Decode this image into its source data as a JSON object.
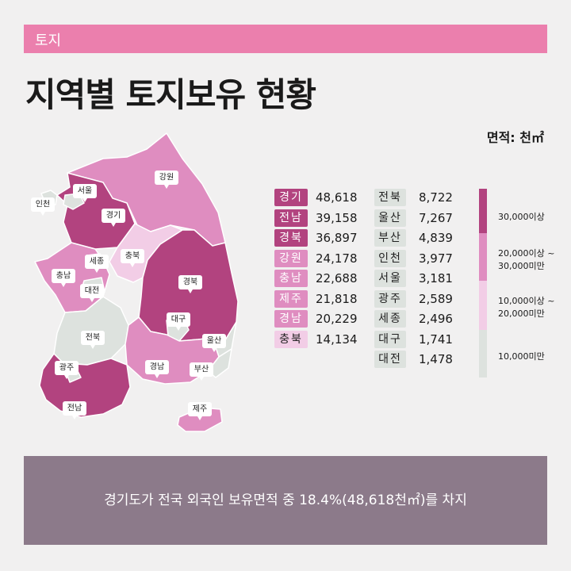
{
  "header": {
    "category": "토지",
    "title": "지역별 토지보유 현황",
    "unit": "면적: 천㎡"
  },
  "colors": {
    "category_bar": "#eb7fad",
    "level_1": "#b2437f",
    "level_2": "#df8dc0",
    "level_3": "#f2cde6",
    "level_4": "#dde2de",
    "summary_bg": "#8c7a8a"
  },
  "chart_data": {
    "type": "table",
    "unit": "천㎡",
    "regions": [
      {
        "name": "경기",
        "value": 48618,
        "display": "48,618",
        "level": 1
      },
      {
        "name": "전남",
        "value": 39158,
        "display": "39,158",
        "level": 1
      },
      {
        "name": "경북",
        "value": 36897,
        "display": "36,897",
        "level": 1
      },
      {
        "name": "강원",
        "value": 24178,
        "display": "24,178",
        "level": 2
      },
      {
        "name": "충남",
        "value": 22688,
        "display": "22,688",
        "level": 2
      },
      {
        "name": "제주",
        "value": 21818,
        "display": "21,818",
        "level": 2
      },
      {
        "name": "경남",
        "value": 20229,
        "display": "20,229",
        "level": 2
      },
      {
        "name": "충북",
        "value": 14134,
        "display": "14,134",
        "level": 3
      },
      {
        "name": "전북",
        "value": 8722,
        "display": "8,722",
        "level": 4
      },
      {
        "name": "울산",
        "value": 7267,
        "display": "7,267",
        "level": 4
      },
      {
        "name": "부산",
        "value": 4839,
        "display": "4,839",
        "level": 4
      },
      {
        "name": "인천",
        "value": 3977,
        "display": "3,977",
        "level": 4
      },
      {
        "name": "서울",
        "value": 3181,
        "display": "3,181",
        "level": 4
      },
      {
        "name": "광주",
        "value": 2589,
        "display": "2,589",
        "level": 4
      },
      {
        "name": "세종",
        "value": 2496,
        "display": "2,496",
        "level": 4
      },
      {
        "name": "대구",
        "value": 1741,
        "display": "1,741",
        "level": 4
      },
      {
        "name": "대전",
        "value": 1478,
        "display": "1,478",
        "level": 4
      }
    ],
    "legend": [
      {
        "lines": [
          "30,000이상"
        ],
        "level": 1
      },
      {
        "lines": [
          "20,000이상 ~",
          "30,000미만"
        ],
        "level": 2
      },
      {
        "lines": [
          "10,000이상 ~",
          "20,000미만"
        ],
        "level": 3
      },
      {
        "lines": [
          "10,000미만"
        ],
        "level": 4
      }
    ]
  },
  "map": {
    "labels": [
      "서울",
      "인천",
      "경기",
      "강원",
      "충북",
      "세종",
      "충남",
      "대전",
      "경북",
      "대구",
      "전북",
      "울산",
      "광주",
      "경남",
      "부산",
      "전남",
      "제주"
    ]
  },
  "summary": {
    "text": "경기도가 전국 외국인 보유면적 중 18.4%(48,618천㎡)를 차지"
  }
}
